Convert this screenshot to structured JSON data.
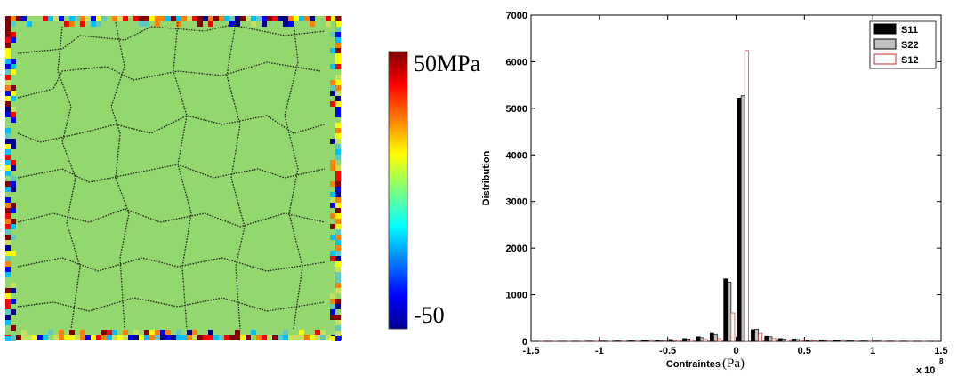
{
  "colorbar": {
    "max_label": "50MPa",
    "min_label": "-50"
  },
  "chart_data": {
    "type": "grouped-histogram",
    "xlabel": "Contraintes",
    "xlabel_unit": "(Pa)",
    "ylabel": "Distribution",
    "x_multiplier": "x 10",
    "x_multiplier_exp": "8",
    "x": [
      -1.45,
      -1.35,
      -1.25,
      -1.15,
      -1.05,
      -0.95,
      -0.85,
      -0.75,
      -0.65,
      -0.55,
      -0.45,
      -0.35,
      -0.25,
      -0.15,
      -0.05,
      0.05,
      0.15,
      0.25,
      0.35,
      0.45,
      0.55,
      0.65,
      0.75,
      0.85,
      0.95,
      1.05,
      1.15,
      1.25,
      1.35,
      1.45
    ],
    "series": [
      {
        "name": "S11",
        "color": "#000000",
        "edge": "#000000",
        "values": [
          2,
          3,
          3,
          4,
          5,
          6,
          8,
          10,
          15,
          25,
          40,
          60,
          100,
          170,
          1340,
          5220,
          250,
          110,
          60,
          50,
          30,
          20,
          15,
          10,
          8,
          6,
          5,
          4,
          3,
          2
        ]
      },
      {
        "name": "S22",
        "color": "#c0c0c0",
        "edge": "#000000",
        "values": [
          2,
          2,
          3,
          3,
          4,
          5,
          7,
          9,
          12,
          20,
          30,
          50,
          80,
          140,
          1270,
          5270,
          260,
          100,
          50,
          40,
          25,
          18,
          12,
          9,
          7,
          5,
          4,
          3,
          2,
          2
        ]
      },
      {
        "name": "S12",
        "color": "#ffffff",
        "edge": "#c03030",
        "values": [
          1,
          1,
          2,
          2,
          3,
          3,
          4,
          5,
          6,
          10,
          20,
          30,
          40,
          60,
          610,
          6240,
          170,
          60,
          30,
          20,
          15,
          10,
          8,
          6,
          4,
          3,
          3,
          2,
          2,
          1
        ]
      }
    ],
    "xlim": [
      -1.5,
      1.5
    ],
    "xticks": [
      -1.5,
      -1,
      -0.5,
      0,
      0.5,
      1,
      1.5
    ],
    "ylim": [
      0,
      7000
    ],
    "yticks": [
      0,
      1000,
      2000,
      3000,
      4000,
      5000,
      6000,
      7000
    ],
    "legend": "upper-right",
    "grid": false
  }
}
